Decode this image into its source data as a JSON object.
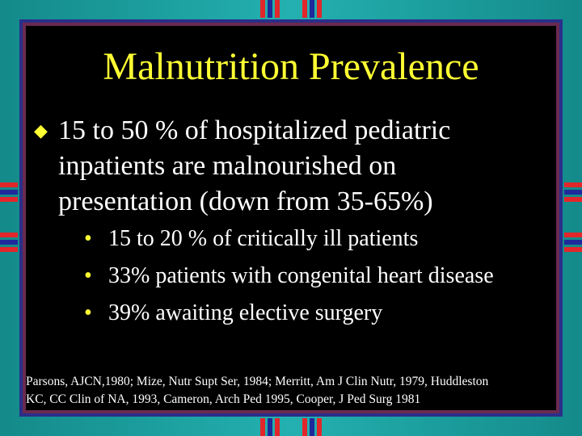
{
  "slide": {
    "title": "Malnutrition Prevalence",
    "main_bullet": {
      "line1": "15 to 50 %  of hospitalized pediatric",
      "line2": "inpatients are malnourished on",
      "line3": "presentation (down from 35-65%)"
    },
    "sub_bullets": [
      "15 to 20 % of critically ill patients",
      "33% patients with congenital heart disease",
      "39% awaiting elective surgery"
    ],
    "references": {
      "line1": "Parsons, AJCN,1980; Mize, Nutr Supt Ser, 1984; Merritt, Am J Clin Nutr, 1979, Huddleston",
      "line2": "KC, CC Clin of NA, 1993, Cameron, Arch Ped 1995, Cooper, J Ped Surg 1981"
    },
    "colors": {
      "background": "#1e9c9c",
      "panel": "#000000",
      "title": "#ffff33",
      "text": "#ffffff",
      "accent_red": "#e3262a",
      "accent_navy": "#1f2a9a"
    },
    "icons": {
      "main_bullet": "diamond-bullet-icon",
      "sub_bullet": "dot-bullet-icon"
    }
  }
}
